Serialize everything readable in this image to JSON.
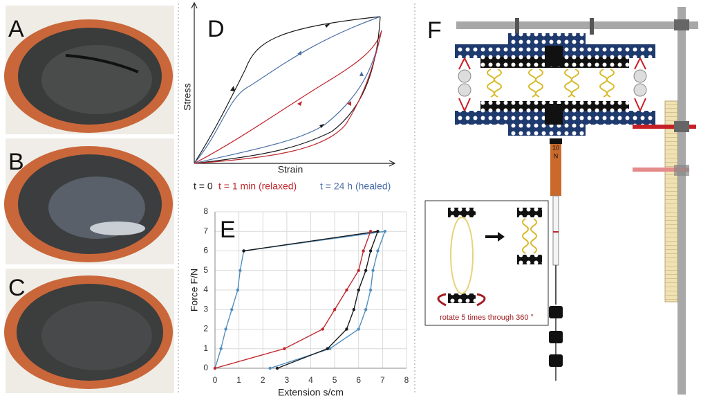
{
  "panels": {
    "a": "A",
    "b": "B",
    "c": "C",
    "d": "D",
    "e": "E",
    "f": "F"
  },
  "panel_d": {
    "y_label": "Stress",
    "x_label": "Strain",
    "legend": [
      {
        "text": "t = 0",
        "color": "#1a1a1a"
      },
      {
        "text": "t = 1 min (relaxed)",
        "color": "#c0282d"
      },
      {
        "text": "t = 24 h (healed)",
        "color": "#4a6fa5"
      }
    ]
  },
  "chart_data": {
    "type": "line",
    "x_label": "Extension s/cm",
    "y_label": "Force F/N",
    "xlim": [
      0,
      8
    ],
    "ylim": [
      0,
      8
    ],
    "xticks": [
      0,
      1,
      2,
      3,
      4,
      5,
      6,
      7,
      8
    ],
    "yticks": [
      0,
      1,
      2,
      3,
      4,
      5,
      6,
      7,
      8
    ],
    "grid": true,
    "series": [
      {
        "color": "#4f8fc0",
        "x": [
          0,
          0.25,
          0.45,
          0.7,
          0.95,
          1.05,
          1.2,
          7.1,
          6.8,
          6.6,
          6.5,
          6.3,
          6.0,
          4.8,
          2.3
        ],
        "values": [
          0,
          1,
          2,
          3,
          4,
          5,
          6,
          7,
          6,
          5,
          4,
          3,
          2,
          1,
          0
        ]
      },
      {
        "color": "#1a1a1a",
        "x": [
          1.2,
          6.8,
          6.5,
          6.3,
          6.0,
          5.8,
          5.5,
          4.7,
          2.6
        ],
        "values": [
          6,
          7,
          6,
          5,
          4,
          3,
          2,
          1,
          0
        ]
      },
      {
        "color": "#c0282d",
        "x": [
          6.5,
          6.2,
          6.0,
          5.5,
          5.0,
          4.5,
          2.9,
          0
        ],
        "values": [
          7,
          6,
          5,
          4,
          3,
          2,
          1,
          0
        ]
      }
    ]
  },
  "panel_f": {
    "weight_label": [
      "10",
      "N"
    ],
    "inset_caption": "rotate 5 times through 360 °"
  }
}
